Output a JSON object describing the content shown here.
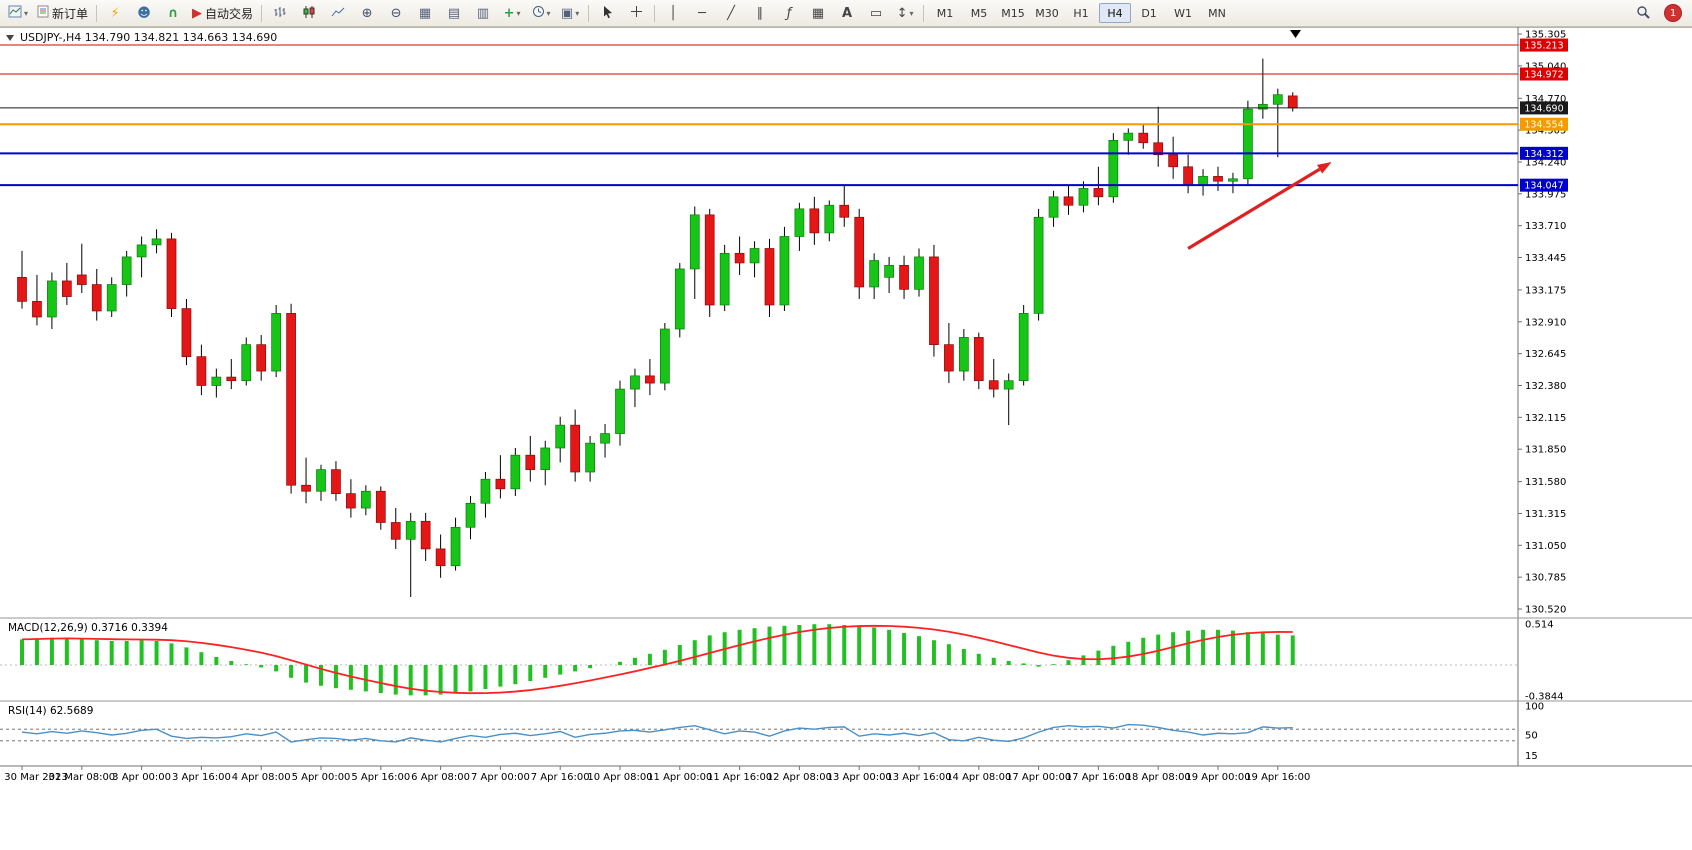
{
  "toolbar": {
    "new_order_label": "新订单",
    "autotrading_label": "自动交易",
    "timeframes": [
      "M1",
      "M5",
      "M15",
      "M30",
      "H1",
      "H4",
      "D1",
      "W1",
      "MN"
    ],
    "active_timeframe": "H4",
    "notification_count": "1"
  },
  "chart_header": {
    "symbol_period": "USDJPY-,H4",
    "ohlc": "134.790 134.821 134.663 134.690"
  },
  "chart_data": {
    "type": "candlestick",
    "symbol": "USDJPY-",
    "timeframe": "H4",
    "grid": false,
    "current_price": "134.690",
    "price_range": [
      130.52,
      135.305
    ],
    "up_color": "#17c517",
    "down_color": "#e41616",
    "y_axis_ticks": [
      "135.305",
      "135.040",
      "134.770",
      "134.505",
      "134.240",
      "133.975",
      "133.710",
      "133.445",
      "133.175",
      "132.910",
      "132.645",
      "132.380",
      "132.115",
      "131.850",
      "131.580",
      "131.315",
      "131.050",
      "130.785",
      "130.520"
    ],
    "x_labels": [
      "30 Mar 2023",
      "31 Mar 08:00",
      "3 Apr 00:00",
      "3 Apr 16:00",
      "4 Apr 08:00",
      "5 Apr 00:00",
      "5 Apr 16:00",
      "6 Apr 08:00",
      "7 Apr 00:00",
      "7 Apr 16:00",
      "10 Apr 08:00",
      "11 Apr 00:00",
      "11 Apr 16:00",
      "12 Apr 08:00",
      "13 Apr 00:00",
      "13 Apr 16:00",
      "14 Apr 08:00",
      "17 Apr 00:00",
      "17 Apr 16:00",
      "18 Apr 08:00",
      "19 Apr 00:00",
      "19 Apr 16:00"
    ],
    "price_lines": [
      {
        "price": "135.213",
        "value": 135.213,
        "color": "#dd0000",
        "width": 1
      },
      {
        "price": "134.972",
        "value": 134.972,
        "color": "#dd0000",
        "width": 1
      },
      {
        "price": "134.554",
        "value": 134.554,
        "color": "#f59a00",
        "width": 2
      },
      {
        "price": "134.312",
        "value": 134.312,
        "color": "#0000cc",
        "width": 2
      },
      {
        "price": "134.047",
        "value": 134.047,
        "color": "#0000cc",
        "width": 2
      },
      {
        "price": "134.690",
        "value": 134.69,
        "color": "#1a1a1a",
        "width": 1
      }
    ],
    "annotations": [
      {
        "type": "arrow",
        "color": "#e02020",
        "from_bar": 78,
        "from_price": 133.52,
        "to_bar": 87.6,
        "to_price": 134.24
      }
    ],
    "candles": [
      [
        133.28,
        133.5,
        133.02,
        133.08
      ],
      [
        133.08,
        133.3,
        132.88,
        132.95
      ],
      [
        132.95,
        133.32,
        132.85,
        133.25
      ],
      [
        133.25,
        133.4,
        133.05,
        133.12
      ],
      [
        133.3,
        133.56,
        133.15,
        133.22
      ],
      [
        133.22,
        133.35,
        132.92,
        133.0
      ],
      [
        133.0,
        133.28,
        132.95,
        133.22
      ],
      [
        133.22,
        133.5,
        133.12,
        133.45
      ],
      [
        133.45,
        133.62,
        133.28,
        133.55
      ],
      [
        133.55,
        133.68,
        133.48,
        133.6
      ],
      [
        133.6,
        133.65,
        132.95,
        133.02
      ],
      [
        133.02,
        133.1,
        132.55,
        132.62
      ],
      [
        132.62,
        132.72,
        132.3,
        132.38
      ],
      [
        132.38,
        132.52,
        132.28,
        132.45
      ],
      [
        132.45,
        132.6,
        132.35,
        132.42
      ],
      [
        132.42,
        132.78,
        132.38,
        132.72
      ],
      [
        132.72,
        132.8,
        132.42,
        132.5
      ],
      [
        132.5,
        133.05,
        132.45,
        132.98
      ],
      [
        132.98,
        133.06,
        131.48,
        131.55
      ],
      [
        131.55,
        131.78,
        131.4,
        131.5
      ],
      [
        131.5,
        131.72,
        131.42,
        131.68
      ],
      [
        131.68,
        131.75,
        131.42,
        131.48
      ],
      [
        131.48,
        131.6,
        131.28,
        131.36
      ],
      [
        131.36,
        131.55,
        131.3,
        131.5
      ],
      [
        131.5,
        131.54,
        131.18,
        131.24
      ],
      [
        131.24,
        131.36,
        131.02,
        131.1
      ],
      [
        131.1,
        131.32,
        130.62,
        131.25
      ],
      [
        131.25,
        131.32,
        130.92,
        131.02
      ],
      [
        131.02,
        131.14,
        130.78,
        130.88
      ],
      [
        130.88,
        131.28,
        130.84,
        131.2
      ],
      [
        131.2,
        131.46,
        131.1,
        131.4
      ],
      [
        131.4,
        131.66,
        131.28,
        131.6
      ],
      [
        131.6,
        131.8,
        131.44,
        131.52
      ],
      [
        131.52,
        131.86,
        131.46,
        131.8
      ],
      [
        131.8,
        131.96,
        131.58,
        131.68
      ],
      [
        131.68,
        131.92,
        131.55,
        131.86
      ],
      [
        131.86,
        132.12,
        131.74,
        132.05
      ],
      [
        132.05,
        132.18,
        131.58,
        131.66
      ],
      [
        131.66,
        131.96,
        131.58,
        131.9
      ],
      [
        131.9,
        132.06,
        131.78,
        131.98
      ],
      [
        131.98,
        132.42,
        131.88,
        132.35
      ],
      [
        132.35,
        132.52,
        132.2,
        132.46
      ],
      [
        132.46,
        132.6,
        132.3,
        132.4
      ],
      [
        132.4,
        132.9,
        132.34,
        132.85
      ],
      [
        132.85,
        133.4,
        132.78,
        133.35
      ],
      [
        133.35,
        133.87,
        133.1,
        133.8
      ],
      [
        133.8,
        133.85,
        132.95,
        133.05
      ],
      [
        133.05,
        133.55,
        133.0,
        133.48
      ],
      [
        133.48,
        133.62,
        133.3,
        133.4
      ],
      [
        133.4,
        133.58,
        133.28,
        133.52
      ],
      [
        133.52,
        133.6,
        132.95,
        133.05
      ],
      [
        133.05,
        133.7,
        133.0,
        133.62
      ],
      [
        133.62,
        133.9,
        133.5,
        133.85
      ],
      [
        133.85,
        133.95,
        133.55,
        133.65
      ],
      [
        133.65,
        133.92,
        133.58,
        133.88
      ],
      [
        133.88,
        134.04,
        133.7,
        133.78
      ],
      [
        133.78,
        133.85,
        133.1,
        133.2
      ],
      [
        133.2,
        133.48,
        133.1,
        133.42
      ],
      [
        133.28,
        133.45,
        133.15,
        133.38
      ],
      [
        133.38,
        133.46,
        133.1,
        133.18
      ],
      [
        133.18,
        133.52,
        133.12,
        133.45
      ],
      [
        133.45,
        133.55,
        132.62,
        132.72
      ],
      [
        132.72,
        132.9,
        132.4,
        132.5
      ],
      [
        132.5,
        132.85,
        132.42,
        132.78
      ],
      [
        132.78,
        132.82,
        132.35,
        132.42
      ],
      [
        132.42,
        132.6,
        132.28,
        132.35
      ],
      [
        132.35,
        132.48,
        132.05,
        132.42
      ],
      [
        132.42,
        133.05,
        132.38,
        132.98
      ],
      [
        132.98,
        133.85,
        132.92,
        133.78
      ],
      [
        133.78,
        134.0,
        133.7,
        133.95
      ],
      [
        133.95,
        134.05,
        133.8,
        133.88
      ],
      [
        133.88,
        134.08,
        133.82,
        134.02
      ],
      [
        134.02,
        134.2,
        133.88,
        133.95
      ],
      [
        133.95,
        134.48,
        133.9,
        134.42
      ],
      [
        134.42,
        134.52,
        134.3,
        134.48
      ],
      [
        134.48,
        134.55,
        134.35,
        134.4
      ],
      [
        134.4,
        134.7,
        134.2,
        134.3
      ],
      [
        134.3,
        134.45,
        134.1,
        134.2
      ],
      [
        134.2,
        134.3,
        133.98,
        134.05
      ],
      [
        134.05,
        134.18,
        133.96,
        134.12
      ],
      [
        134.12,
        134.2,
        134.0,
        134.08
      ],
      [
        134.08,
        134.15,
        133.98,
        134.1
      ],
      [
        134.1,
        134.75,
        134.05,
        134.68
      ],
      [
        134.68,
        135.1,
        134.6,
        134.72
      ],
      [
        134.72,
        134.85,
        134.28,
        134.8
      ],
      [
        134.79,
        134.82,
        134.66,
        134.69
      ]
    ],
    "indicators": {
      "macd": {
        "label": "MACD(12,26,9) 0.3716 0.3394",
        "scale_max": "0.514",
        "scale_min": "-0.3844",
        "histogram_color": "#22c122",
        "signal_color": "#ff2222",
        "values": [
          0.32,
          0.33,
          0.34,
          0.34,
          0.32,
          0.31,
          0.3,
          0.3,
          0.31,
          0.3,
          0.27,
          0.22,
          0.16,
          0.1,
          0.05,
          0.01,
          -0.03,
          -0.08,
          -0.16,
          -0.22,
          -0.26,
          -0.29,
          -0.31,
          -0.33,
          -0.35,
          -0.37,
          -0.38,
          -0.38,
          -0.37,
          -0.35,
          -0.33,
          -0.3,
          -0.27,
          -0.24,
          -0.2,
          -0.16,
          -0.12,
          -0.08,
          -0.04,
          0.0,
          0.04,
          0.09,
          0.14,
          0.19,
          0.25,
          0.31,
          0.37,
          0.41,
          0.44,
          0.46,
          0.48,
          0.49,
          0.5,
          0.51,
          0.51,
          0.5,
          0.49,
          0.47,
          0.44,
          0.4,
          0.36,
          0.31,
          0.26,
          0.2,
          0.14,
          0.09,
          0.05,
          0.02,
          -0.02,
          0.01,
          0.06,
          0.12,
          0.18,
          0.24,
          0.29,
          0.34,
          0.38,
          0.41,
          0.43,
          0.44,
          0.44,
          0.43,
          0.41,
          0.4,
          0.38,
          0.37
        ]
      },
      "rsi": {
        "label": "RSI(14) 62.5689",
        "scale": [
          "100",
          "50",
          "15"
        ],
        "levels": [
          60,
          40
        ],
        "line_color": "#4a90c8",
        "values": [
          55,
          52,
          56,
          53,
          57,
          54,
          50,
          53,
          58,
          60,
          48,
          44,
          46,
          45,
          47,
          52,
          49,
          55,
          38,
          42,
          45,
          44,
          41,
          44,
          40,
          38,
          45,
          41,
          38,
          44,
          49,
          46,
          51,
          53,
          49,
          52,
          56,
          46,
          51,
          53,
          57,
          58,
          55,
          59,
          63,
          66,
          59,
          52,
          57,
          55,
          48,
          57,
          62,
          60,
          63,
          64,
          48,
          52,
          50,
          53,
          49,
          54,
          42,
          40,
          46,
          41,
          39,
          45,
          55,
          63,
          66,
          64,
          65,
          62,
          68,
          67,
          63,
          58,
          55,
          50,
          53,
          52,
          54,
          64,
          62,
          62.57
        ]
      }
    }
  }
}
